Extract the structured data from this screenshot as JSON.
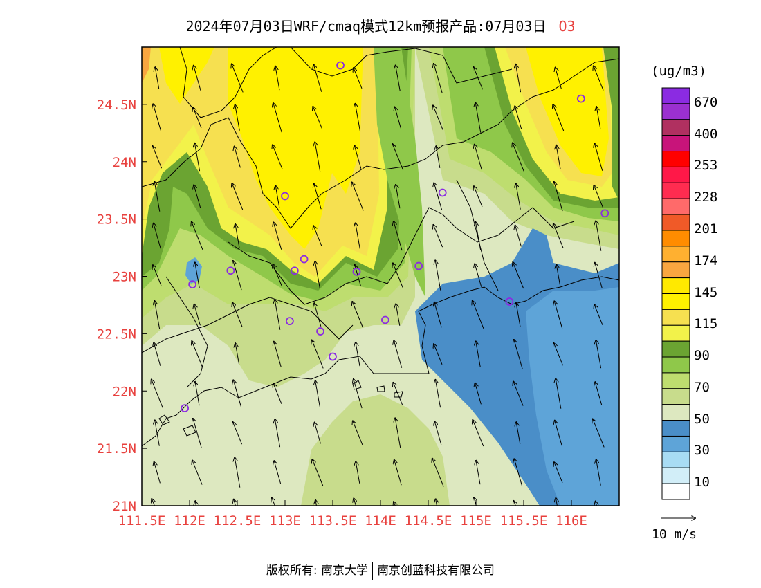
{
  "title": {
    "main": "2024年07月03日WRF/cmaq模式12km预报产品:07月03日",
    "pollutant": "O3"
  },
  "axes": {
    "lat_labels": [
      "24.5N",
      "24N",
      "23.5N",
      "23N",
      "22.5N",
      "22N",
      "21.5N",
      "21N"
    ],
    "lat_values": [
      24.5,
      24.0,
      23.5,
      23.0,
      22.5,
      22.0,
      21.5,
      21.0
    ],
    "lon_labels": [
      "111.5E",
      "112E",
      "112.5E",
      "113E",
      "113.5E",
      "114E",
      "114.5E",
      "115E",
      "115.5E",
      "116E"
    ],
    "lon_values": [
      111.5,
      112.0,
      112.5,
      113.0,
      113.5,
      114.0,
      114.5,
      115.0,
      115.5,
      116.0
    ],
    "lon_range": [
      111.5,
      116.5
    ],
    "lat_range": [
      21.0,
      25.0
    ],
    "label_color": "#e8413e"
  },
  "legend": {
    "unit": "(ug/m3)",
    "colors": [
      "#8b2be2",
      "#9b30d0",
      "#b03060",
      "#c8147a",
      "#ff0000",
      "#ff1848",
      "#ff2c50",
      "#ff6a6a",
      "#f05a28",
      "#ff8c00",
      "#ffb030",
      "#f9a640",
      "#ffe900",
      "#fff100",
      "#f6e050",
      "#f2f24a",
      "#6ba432",
      "#8fc84a",
      "#bedd6f",
      "#c8dc8c",
      "#dde8c0",
      "#4a8ec8",
      "#5ea4d8",
      "#a8dcf4",
      "#d2eef8",
      "#ffffff"
    ],
    "labels": [
      "670",
      "400",
      "253",
      "228",
      "201",
      "174",
      "145",
      "115",
      "90",
      "70",
      "50",
      "30",
      "10"
    ]
  },
  "wind": {
    "reference_label": "10 m/s"
  },
  "stations": [
    {
      "lon": 113.58,
      "lat": 24.84
    },
    {
      "lon": 116.1,
      "lat": 24.55
    },
    {
      "lon": 113.0,
      "lat": 23.7
    },
    {
      "lon": 114.65,
      "lat": 23.73
    },
    {
      "lon": 116.35,
      "lat": 23.55
    },
    {
      "lon": 113.2,
      "lat": 23.15
    },
    {
      "lon": 112.43,
      "lat": 23.05
    },
    {
      "lon": 113.1,
      "lat": 23.05
    },
    {
      "lon": 113.75,
      "lat": 23.04
    },
    {
      "lon": 114.4,
      "lat": 23.09
    },
    {
      "lon": 112.03,
      "lat": 22.93
    },
    {
      "lon": 115.35,
      "lat": 22.78
    },
    {
      "lon": 113.05,
      "lat": 22.61
    },
    {
      "lon": 114.05,
      "lat": 22.62
    },
    {
      "lon": 113.37,
      "lat": 22.52
    },
    {
      "lon": 113.5,
      "lat": 22.3
    },
    {
      "lon": 111.95,
      "lat": 21.85
    }
  ],
  "footer": {
    "left": "版权所有: 南京大学",
    "right": "南京创蓝科技有限公司"
  }
}
